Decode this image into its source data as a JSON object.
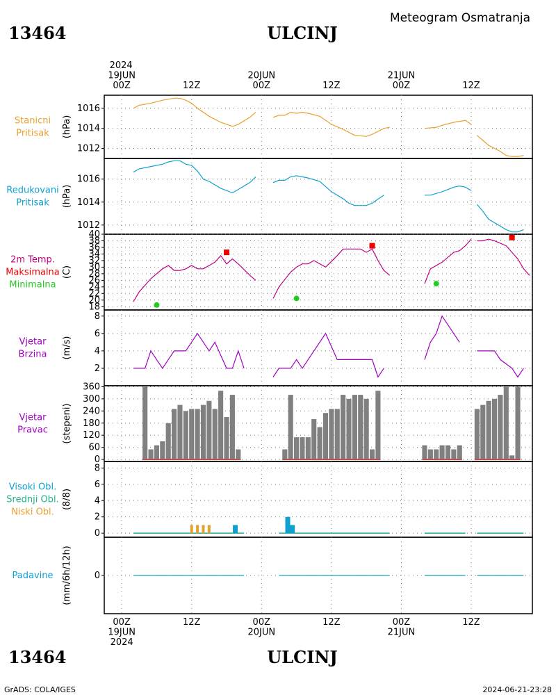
{
  "header": {
    "station_id": "13464",
    "station_name": "ULCINJ",
    "product_title": "Meteogram Osmatranja",
    "footer_left": "GrADS: COLA/IGES",
    "footer_right": "2024-06-21-23:28"
  },
  "time_axis": {
    "top_ticks": [
      {
        "hour": 0,
        "lines": [
          "2024",
          "19JUN",
          "00Z"
        ]
      },
      {
        "hour": 12,
        "lines": [
          "12Z"
        ]
      },
      {
        "hour": 24,
        "lines": [
          "20JUN",
          "00Z"
        ]
      },
      {
        "hour": 36,
        "lines": [
          "12Z"
        ]
      },
      {
        "hour": 48,
        "lines": [
          "21JUN",
          "00Z"
        ]
      },
      {
        "hour": 60,
        "lines": [
          "12Z"
        ]
      }
    ],
    "bottom_ticks": [
      {
        "hour": 0,
        "lines": [
          "00Z",
          "19JUN",
          "2024"
        ]
      },
      {
        "hour": 12,
        "lines": [
          "12Z"
        ]
      },
      {
        "hour": 24,
        "lines": [
          "00Z",
          "20JUN"
        ]
      },
      {
        "hour": 36,
        "lines": [
          "12Z"
        ]
      },
      {
        "hour": 48,
        "lines": [
          "00Z",
          "21JUN"
        ]
      },
      {
        "hour": 60,
        "lines": [
          "12Z"
        ]
      }
    ],
    "range_hours": [
      -3,
      70.5
    ]
  },
  "colors": {
    "station_pressure": "#e8a030",
    "reduced_pressure": "#10a0d0",
    "temperature": "#c00080",
    "tmax": "#ee0000",
    "tmin": "#22cc22",
    "wind": "#a000c0",
    "dir_bar": "#808080",
    "dir_base": "#c05050",
    "high_cloud": "#10a0d0",
    "mid_cloud": "#20b090",
    "low_cloud": "#e8a030",
    "precip": "#10a0d0"
  },
  "panels": [
    {
      "id": "station_pressure",
      "labels": [
        {
          "text": "Stanicni",
          "color": "#e8a030"
        },
        {
          "text": "Pritisak",
          "color": "#e8a030"
        }
      ],
      "unit": "(hPa)",
      "yticks": [
        "1012",
        "1014",
        "1016"
      ]
    },
    {
      "id": "reduced_pressure",
      "labels": [
        {
          "text": "Redukovani",
          "color": "#10a0d0"
        },
        {
          "text": "Pritisak",
          "color": "#10a0d0"
        }
      ],
      "unit": "(hPa)",
      "yticks": [
        "1012",
        "1014",
        "1016"
      ]
    },
    {
      "id": "temperature",
      "labels": [
        {
          "text": "2m Temp.",
          "color": "#c00080"
        },
        {
          "text": "Maksimalna",
          "color": "#ee0000"
        },
        {
          "text": "Minimalna",
          "color": "#22cc22"
        }
      ],
      "unit": "(C)",
      "yticks": [
        "18",
        "20",
        "22",
        "24",
        "26",
        "28",
        "30",
        "32",
        "34",
        "36",
        "38",
        "40"
      ]
    },
    {
      "id": "wind_speed",
      "labels": [
        {
          "text": "Vjetar",
          "color": "#a000c0"
        },
        {
          "text": "Brzina",
          "color": "#a000c0"
        }
      ],
      "unit": "(m/s)",
      "yticks": [
        "2",
        "4",
        "6",
        "8"
      ]
    },
    {
      "id": "wind_dir",
      "labels": [
        {
          "text": "Vjetar",
          "color": "#a000c0"
        },
        {
          "text": "Pravac",
          "color": "#a000c0"
        }
      ],
      "unit": "(stepeni)",
      "yticks": [
        "0",
        "60",
        "120",
        "180",
        "240",
        "300",
        "360"
      ]
    },
    {
      "id": "clouds",
      "labels": [
        {
          "text": "Visoki Obl.",
          "color": "#10a0d0"
        },
        {
          "text": "Srednji Obl.",
          "color": "#20b090"
        },
        {
          "text": "Niski Obl.",
          "color": "#e8a030"
        }
      ],
      "unit": "(8/8)",
      "yticks": [
        "0",
        "2",
        "4",
        "6",
        "8"
      ]
    },
    {
      "id": "precip",
      "labels": [
        {
          "text": "Padavine",
          "color": "#10a0d0"
        }
      ],
      "unit": "(mm/6h/12h)",
      "yticks": [
        "0"
      ]
    }
  ],
  "chart_data": [
    {
      "type": "line",
      "name": "Stanicni Pritisak",
      "ylabel": "(hPa)",
      "ylim": [
        1011,
        1017.3
      ],
      "segments": [
        [
          [
            2,
            1016.0
          ],
          [
            3,
            1016.3
          ],
          [
            5,
            1016.5
          ],
          [
            7,
            1016.8
          ],
          [
            9,
            1017.0
          ],
          [
            10,
            1017.0
          ],
          [
            11,
            1016.8
          ],
          [
            12,
            1016.5
          ],
          [
            13,
            1016.0
          ],
          [
            15,
            1015.2
          ],
          [
            17,
            1014.6
          ],
          [
            19,
            1014.2
          ],
          [
            20,
            1014.4
          ],
          [
            22,
            1015.1
          ],
          [
            23,
            1015.6
          ]
        ],
        [
          [
            26,
            1015.1
          ],
          [
            27,
            1015.3
          ],
          [
            28,
            1015.3
          ],
          [
            29,
            1015.6
          ],
          [
            30,
            1015.5
          ],
          [
            31,
            1015.6
          ],
          [
            32,
            1015.5
          ],
          [
            34,
            1015.2
          ],
          [
            36,
            1014.4
          ],
          [
            38,
            1013.9
          ],
          [
            40,
            1013.3
          ],
          [
            42,
            1013.2
          ],
          [
            43,
            1013.4
          ],
          [
            45,
            1014.0
          ],
          [
            46,
            1014.1
          ]
        ],
        [
          [
            52,
            1014.0
          ],
          [
            54,
            1014.1
          ],
          [
            55,
            1014.3
          ],
          [
            57,
            1014.6
          ],
          [
            58,
            1014.7
          ],
          [
            59,
            1014.8
          ],
          [
            60,
            1014.4
          ]
        ],
        [
          [
            61,
            1013.3
          ],
          [
            62,
            1012.8
          ],
          [
            63,
            1012.3
          ],
          [
            65,
            1011.7
          ],
          [
            66,
            1011.3
          ],
          [
            67,
            1011.2
          ],
          [
            68,
            1011.2
          ],
          [
            69,
            1011.3
          ]
        ]
      ]
    },
    {
      "type": "line",
      "name": "Redukovani Pritisak",
      "ylabel": "(hPa)",
      "ylim": [
        1011.2,
        1017.8
      ],
      "segments": [
        [
          [
            2,
            1016.6
          ],
          [
            3,
            1016.9
          ],
          [
            5,
            1017.1
          ],
          [
            7,
            1017.3
          ],
          [
            8,
            1017.5
          ],
          [
            9,
            1017.6
          ],
          [
            10,
            1017.6
          ],
          [
            11,
            1017.3
          ],
          [
            12,
            1017.2
          ],
          [
            13,
            1016.7
          ],
          [
            14,
            1016.0
          ],
          [
            15,
            1015.8
          ],
          [
            17,
            1015.2
          ],
          [
            19,
            1014.8
          ],
          [
            20,
            1015.1
          ],
          [
            22,
            1015.7
          ],
          [
            23,
            1016.2
          ]
        ],
        [
          [
            26,
            1015.7
          ],
          [
            27,
            1015.9
          ],
          [
            28,
            1015.9
          ],
          [
            29,
            1016.2
          ],
          [
            30,
            1016.3
          ],
          [
            31,
            1016.2
          ],
          [
            32,
            1016.1
          ],
          [
            34,
            1015.8
          ],
          [
            36,
            1014.9
          ],
          [
            38,
            1014.3
          ],
          [
            39,
            1013.9
          ],
          [
            40,
            1013.7
          ],
          [
            42,
            1013.7
          ],
          [
            43,
            1013.9
          ],
          [
            45,
            1014.6
          ]
        ],
        [
          [
            52,
            1014.6
          ],
          [
            53,
            1014.6
          ],
          [
            55,
            1014.9
          ],
          [
            57,
            1015.3
          ],
          [
            58,
            1015.4
          ],
          [
            59,
            1015.3
          ],
          [
            60,
            1015.0
          ]
        ],
        [
          [
            61,
            1013.8
          ],
          [
            62,
            1013.2
          ],
          [
            63,
            1012.5
          ],
          [
            65,
            1011.9
          ],
          [
            66,
            1011.6
          ],
          [
            67,
            1011.4
          ],
          [
            68,
            1011.4
          ],
          [
            69,
            1011.6
          ]
        ]
      ]
    },
    {
      "type": "line",
      "name": "2m Temp.",
      "ylabel": "(C)",
      "ylim": [
        17,
        40
      ],
      "segments": [
        [
          [
            2,
            19.5
          ],
          [
            3,
            22.5
          ],
          [
            5,
            26.5
          ],
          [
            7,
            29.5
          ],
          [
            8,
            30.5
          ],
          [
            9,
            29.0
          ],
          [
            10,
            29.0
          ],
          [
            11,
            29.5
          ],
          [
            12,
            30.5
          ],
          [
            13,
            29.5
          ],
          [
            14,
            29.5
          ],
          [
            16,
            31.5
          ],
          [
            17,
            33.5
          ],
          [
            18,
            31.0
          ],
          [
            19,
            32.5
          ],
          [
            20,
            31.0
          ],
          [
            22,
            27.5
          ],
          [
            23,
            26.0
          ]
        ],
        [
          [
            26,
            20.5
          ],
          [
            27,
            24.0
          ],
          [
            29,
            28.5
          ],
          [
            30,
            30.0
          ],
          [
            31,
            31.0
          ],
          [
            32,
            31.0
          ],
          [
            33,
            32.0
          ],
          [
            35,
            30.0
          ],
          [
            37,
            33.5
          ],
          [
            38,
            35.5
          ],
          [
            40,
            35.5
          ],
          [
            41,
            35.5
          ],
          [
            42,
            34.5
          ],
          [
            43,
            35.5
          ],
          [
            44,
            32.0
          ],
          [
            45,
            29.0
          ],
          [
            46,
            27.5
          ]
        ],
        [
          [
            52,
            25.0
          ],
          [
            53,
            29.5
          ],
          [
            55,
            31.5
          ],
          [
            57,
            34.5
          ],
          [
            58,
            35.0
          ],
          [
            59,
            36.5
          ],
          [
            60,
            38.5
          ]
        ],
        [
          [
            61,
            38.0
          ],
          [
            62,
            38.0
          ],
          [
            63,
            38.5
          ],
          [
            64,
            38.0
          ],
          [
            66,
            36.5
          ],
          [
            67,
            34.5
          ],
          [
            68,
            32.5
          ],
          [
            69,
            29.5
          ],
          [
            70,
            27.5
          ]
        ]
      ],
      "tmax": [
        [
          18,
          34.5
        ],
        [
          43,
          36.5
        ],
        [
          67,
          39.0
        ]
      ],
      "tmin": [
        [
          6,
          18.5
        ],
        [
          30,
          20.5
        ],
        [
          54,
          25.0
        ]
      ]
    },
    {
      "type": "line",
      "name": "Vjetar Brzina",
      "ylabel": "(m/s)",
      "ylim": [
        0,
        8.7
      ],
      "segments": [
        [
          [
            2,
            2
          ],
          [
            4,
            2
          ],
          [
            5,
            4
          ],
          [
            7,
            2
          ],
          [
            9,
            4
          ],
          [
            11,
            4
          ],
          [
            13,
            6
          ],
          [
            15,
            4
          ],
          [
            16,
            5
          ],
          [
            18,
            2
          ],
          [
            19,
            2
          ],
          [
            20,
            4
          ],
          [
            21,
            2
          ]
        ],
        [
          [
            26,
            1
          ],
          [
            27,
            2
          ],
          [
            29,
            2
          ],
          [
            30,
            3
          ],
          [
            31,
            2
          ],
          [
            32,
            3
          ],
          [
            33,
            4
          ],
          [
            35,
            6
          ],
          [
            37,
            3
          ],
          [
            43,
            3
          ],
          [
            44,
            1
          ],
          [
            45,
            2
          ]
        ],
        [
          [
            52,
            3
          ],
          [
            53,
            5
          ],
          [
            54,
            6
          ],
          [
            55,
            8
          ],
          [
            58,
            5
          ]
        ],
        [
          [
            61,
            4
          ],
          [
            64,
            4
          ],
          [
            65,
            3
          ],
          [
            67,
            2
          ],
          [
            68,
            1
          ],
          [
            69,
            2
          ]
        ]
      ]
    },
    {
      "type": "bar",
      "name": "Vjetar Pravac",
      "ylabel": "(stepeni)",
      "ylim": [
        -10,
        365
      ],
      "values": [
        [
          4,
          360
        ],
        [
          5,
          50
        ],
        [
          6,
          70
        ],
        [
          7,
          90
        ],
        [
          8,
          180
        ],
        [
          9,
          250
        ],
        [
          10,
          270
        ],
        [
          11,
          240
        ],
        [
          12,
          250
        ],
        [
          13,
          250
        ],
        [
          14,
          270
        ],
        [
          15,
          290
        ],
        [
          16,
          250
        ],
        [
          17,
          340
        ],
        [
          18,
          210
        ],
        [
          19,
          320
        ],
        [
          20,
          50
        ],
        [
          28,
          50
        ],
        [
          29,
          320
        ],
        [
          30,
          110
        ],
        [
          31,
          110
        ],
        [
          32,
          110
        ],
        [
          33,
          200
        ],
        [
          34,
          160
        ],
        [
          35,
          230
        ],
        [
          36,
          250
        ],
        [
          37,
          250
        ],
        [
          38,
          320
        ],
        [
          39,
          300
        ],
        [
          40,
          320
        ],
        [
          41,
          320
        ],
        [
          42,
          300
        ],
        [
          43,
          50
        ],
        [
          44,
          340
        ],
        [
          52,
          70
        ],
        [
          53,
          50
        ],
        [
          54,
          50
        ],
        [
          55,
          70
        ],
        [
          56,
          70
        ],
        [
          57,
          50
        ],
        [
          58,
          70
        ],
        [
          61,
          250
        ],
        [
          62,
          270
        ],
        [
          63,
          290
        ],
        [
          64,
          300
        ],
        [
          65,
          320
        ],
        [
          66,
          360
        ],
        [
          67,
          20
        ],
        [
          68,
          360
        ]
      ]
    },
    {
      "type": "bar",
      "name": "Visoki Obl. / Srednji Obl. / Niski Obl.",
      "ylabel": "(8/8)",
      "ylim": [
        -0.5,
        8.8
      ],
      "high": [
        [
          19.5,
          1
        ],
        [
          28.5,
          2
        ],
        [
          29.3,
          1
        ]
      ],
      "mid": [],
      "low": [
        [
          12,
          1
        ],
        [
          13,
          1
        ],
        [
          14,
          1
        ],
        [
          15,
          1
        ]
      ],
      "baseline_segments": [
        [
          2,
          21
        ],
        [
          27,
          46
        ],
        [
          52,
          59
        ],
        [
          61,
          69
        ]
      ]
    },
    {
      "type": "line",
      "name": "Padavine",
      "ylabel": "(mm/6h/12h)",
      "ylim": [
        -5,
        5
      ],
      "values_mm": 0,
      "segments": [
        [
          2,
          21
        ],
        [
          27,
          46
        ],
        [
          52,
          59
        ],
        [
          61,
          69
        ]
      ]
    }
  ]
}
